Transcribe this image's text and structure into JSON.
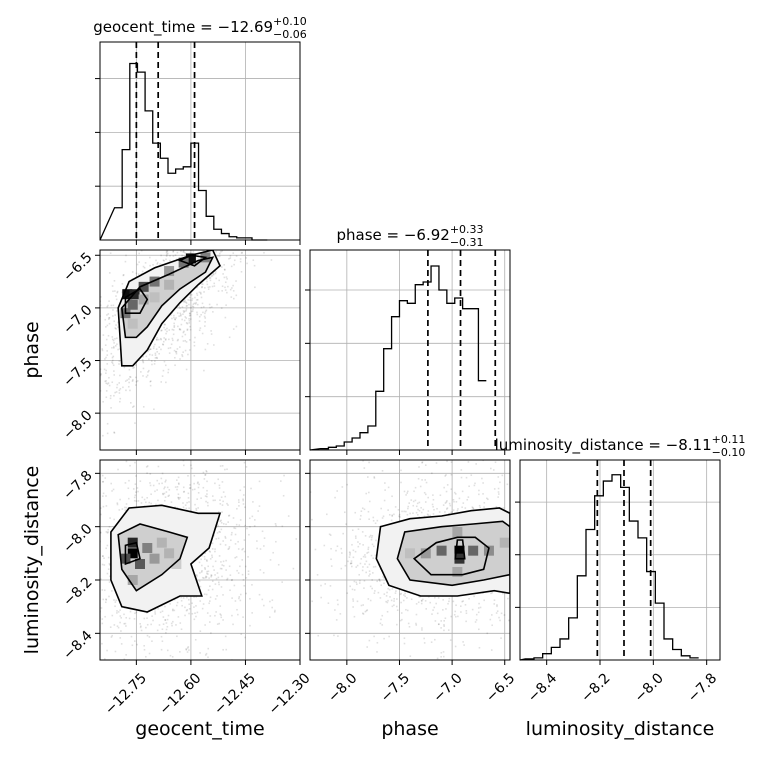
{
  "chart_data": {
    "type": "corner",
    "parameters": [
      {
        "name": "geocent_time",
        "label": "geocent_time",
        "range": [
          -12.85,
          -12.3
        ],
        "ticks": [
          -12.75,
          -12.6,
          -12.45,
          -12.3
        ],
        "tick_labels": [
          "−12.75",
          "−12.60",
          "−12.45",
          "−12.30"
        ],
        "title_main": "geocent_time = −12.69",
        "title_plus": "+0.10",
        "title_minus": "−0.06",
        "quantiles": [
          -12.75,
          -12.69,
          -12.59
        ]
      },
      {
        "name": "phase",
        "label": "phase",
        "range": [
          -8.35,
          -6.45
        ],
        "ticks": [
          -8.0,
          -7.5,
          -7.0,
          -6.5
        ],
        "tick_labels": [
          "−8.0",
          "−7.5",
          "−7.0",
          "−6.5"
        ],
        "title_main": "phase = −6.92",
        "title_plus": "+0.33",
        "title_minus": "−0.31",
        "quantiles": [
          -7.23,
          -6.92,
          -6.59
        ]
      },
      {
        "name": "luminosity_distance",
        "label": "luminosity_distance",
        "range": [
          -8.5,
          -7.75
        ],
        "ticks": [
          -8.4,
          -8.2,
          -8.0,
          -7.8
        ],
        "tick_labels": [
          "−8.4",
          "−8.2",
          "−8.0",
          "−7.8"
        ],
        "title_main": "luminosity_distance = −8.11",
        "title_plus": "+0.11",
        "title_minus": "−0.10",
        "quantiles": [
          -8.21,
          -8.11,
          -8.01
        ]
      }
    ],
    "histograms": {
      "geocent_time": {
        "bin_start": -12.81,
        "bin_width": 0.021,
        "counts": [
          0.15,
          0.42,
          0.82,
          0.78,
          0.6,
          0.45,
          0.38,
          0.31,
          0.33,
          0.34,
          0.45,
          0.23,
          0.11,
          0.05,
          0.03,
          0.015,
          0.01,
          0.01,
          0.0,
          0.0
        ],
        "ymax": 0.92,
        "yticks": [
          0.25,
          0.5,
          0.75
        ]
      },
      "phase": {
        "bin_start": -8.25,
        "bin_width": 0.075,
        "counts": [
          0.005,
          0.01,
          0.015,
          0.03,
          0.045,
          0.065,
          0.09,
          0.22,
          0.38,
          0.5,
          0.56,
          0.55,
          0.62,
          0.63,
          0.69,
          0.6,
          0.55,
          0.57,
          0.53,
          0.53,
          0.26
        ],
        "ymax": 0.75,
        "yticks": [
          0.2,
          0.4,
          0.6
        ]
      },
      "luminosity_distance": {
        "bin_start": -8.48,
        "bin_width": 0.0325,
        "counts": [
          0.005,
          0.01,
          0.03,
          0.06,
          0.1,
          0.2,
          0.4,
          0.62,
          0.78,
          0.85,
          0.88,
          0.82,
          0.66,
          0.58,
          0.42,
          0.27,
          0.1,
          0.05,
          0.02,
          0.01
        ],
        "ymax": 0.95,
        "yticks": [
          0.25,
          0.5,
          0.75
        ]
      }
    },
    "pairs": [
      {
        "x": "geocent_time",
        "y": "phase",
        "contours": [
          [
            [
              -12.79,
              -7.55
            ],
            [
              -12.8,
              -7.0
            ],
            [
              -12.77,
              -6.75
            ],
            [
              -12.7,
              -6.62
            ],
            [
              -12.6,
              -6.5
            ],
            [
              -12.54,
              -6.45
            ],
            [
              -12.52,
              -6.6
            ],
            [
              -12.58,
              -6.78
            ],
            [
              -12.63,
              -6.95
            ],
            [
              -12.68,
              -7.15
            ],
            [
              -12.72,
              -7.4
            ],
            [
              -12.76,
              -7.55
            ]
          ],
          [
            [
              -12.78,
              -7.28
            ],
            [
              -12.79,
              -7.0
            ],
            [
              -12.74,
              -6.8
            ],
            [
              -12.66,
              -6.68
            ],
            [
              -12.58,
              -6.55
            ],
            [
              -12.54,
              -6.52
            ],
            [
              -12.56,
              -6.66
            ],
            [
              -12.63,
              -6.82
            ],
            [
              -12.68,
              -6.98
            ],
            [
              -12.72,
              -7.18
            ],
            [
              -12.75,
              -7.28
            ]
          ],
          [
            [
              -12.78,
              -7.05
            ],
            [
              -12.78,
              -6.9
            ],
            [
              -12.74,
              -6.82
            ],
            [
              -12.72,
              -6.92
            ],
            [
              -12.74,
              -7.05
            ]
          ],
          [
            [
              -12.63,
              -6.55
            ],
            [
              -12.6,
              -6.5
            ],
            [
              -12.56,
              -6.52
            ],
            [
              -12.59,
              -6.6
            ]
          ]
        ],
        "cells": [
          [
            -12.775,
            -6.87,
            0.95
          ],
          [
            -12.755,
            -6.87,
            0.85
          ],
          [
            -12.78,
            -7.05,
            0.55
          ],
          [
            -12.76,
            -6.97,
            0.6
          ],
          [
            -12.73,
            -6.8,
            0.7
          ],
          [
            -12.7,
            -6.75,
            0.55
          ],
          [
            -12.6,
            -6.53,
            0.95
          ],
          [
            -12.62,
            -6.57,
            0.55
          ],
          [
            -12.66,
            -6.65,
            0.4
          ],
          [
            -12.73,
            -6.92,
            0.35
          ],
          [
            -12.7,
            -6.9,
            0.25
          ],
          [
            -12.76,
            -7.15,
            0.25
          ],
          [
            -12.66,
            -6.78,
            0.3
          ],
          [
            -12.56,
            -6.52,
            0.5
          ]
        ]
      },
      {
        "x": "geocent_time",
        "y": "luminosity_distance",
        "contours": [
          [
            [
              -12.82,
              -8.2
            ],
            [
              -12.82,
              -8.02
            ],
            [
              -12.77,
              -7.93
            ],
            [
              -12.68,
              -7.92
            ],
            [
              -12.58,
              -7.95
            ],
            [
              -12.52,
              -7.95
            ],
            [
              -12.55,
              -8.08
            ],
            [
              -12.6,
              -8.14
            ],
            [
              -12.57,
              -8.26
            ],
            [
              -12.63,
              -8.26
            ],
            [
              -12.72,
              -8.32
            ],
            [
              -12.79,
              -8.3
            ]
          ],
          [
            [
              -12.79,
              -8.16
            ],
            [
              -12.8,
              -8.03
            ],
            [
              -12.74,
              -7.99
            ],
            [
              -12.66,
              -8.02
            ],
            [
              -12.61,
              -8.04
            ],
            [
              -12.63,
              -8.12
            ],
            [
              -12.68,
              -8.18
            ],
            [
              -12.75,
              -8.24
            ]
          ],
          [
            [
              -12.78,
              -8.14
            ],
            [
              -12.78,
              -8.07
            ],
            [
              -12.75,
              -8.06
            ],
            [
              -12.74,
              -8.12
            ]
          ]
        ],
        "cells": [
          [
            -12.76,
            -8.1,
            1.0
          ],
          [
            -12.76,
            -8.06,
            0.85
          ],
          [
            -12.78,
            -8.12,
            0.7
          ],
          [
            -12.74,
            -8.14,
            0.65
          ],
          [
            -12.72,
            -8.08,
            0.5
          ],
          [
            -12.7,
            -8.12,
            0.4
          ],
          [
            -12.68,
            -8.06,
            0.3
          ],
          [
            -12.66,
            -8.1,
            0.3
          ],
          [
            -12.76,
            -8.2,
            0.35
          ],
          [
            -12.64,
            -8.14,
            0.2
          ]
        ]
      },
      {
        "x": "phase",
        "y": "luminosity_distance",
        "contours": [
          [
            [
              -7.72,
              -8.12
            ],
            [
              -7.68,
              -8.0
            ],
            [
              -7.4,
              -7.97
            ],
            [
              -7.1,
              -7.96
            ],
            [
              -6.82,
              -7.94
            ],
            [
              -6.55,
              -7.93
            ],
            [
              -6.45,
              -7.95
            ],
            [
              -6.45,
              -8.25
            ],
            [
              -6.6,
              -8.24
            ],
            [
              -6.95,
              -8.26
            ],
            [
              -7.3,
              -8.26
            ],
            [
              -7.6,
              -8.22
            ]
          ],
          [
            [
              -7.52,
              -8.12
            ],
            [
              -7.45,
              -8.02
            ],
            [
              -7.1,
              -8.0
            ],
            [
              -6.8,
              -7.99
            ],
            [
              -6.52,
              -7.98
            ],
            [
              -6.45,
              -8.0
            ],
            [
              -6.45,
              -8.18
            ],
            [
              -6.7,
              -8.2
            ],
            [
              -7.0,
              -8.22
            ],
            [
              -7.4,
              -8.2
            ]
          ],
          [
            [
              -7.36,
              -8.12
            ],
            [
              -7.15,
              -8.06
            ],
            [
              -6.95,
              -8.04
            ],
            [
              -6.78,
              -8.04
            ],
            [
              -6.65,
              -8.08
            ],
            [
              -6.7,
              -8.16
            ],
            [
              -6.9,
              -8.18
            ],
            [
              -7.2,
              -8.18
            ]
          ],
          [
            [
              -6.97,
              -8.12
            ],
            [
              -6.95,
              -8.05
            ],
            [
              -6.9,
              -8.05
            ],
            [
              -6.88,
              -8.12
            ]
          ]
        ],
        "cells": [
          [
            -6.93,
            -8.09,
            1.0
          ],
          [
            -6.93,
            -8.12,
            0.8
          ],
          [
            -7.1,
            -8.09,
            0.6
          ],
          [
            -6.8,
            -8.09,
            0.6
          ],
          [
            -7.25,
            -8.1,
            0.4
          ],
          [
            -6.65,
            -8.09,
            0.45
          ],
          [
            -6.95,
            -8.02,
            0.35
          ],
          [
            -6.95,
            -8.17,
            0.35
          ],
          [
            -7.4,
            -8.1,
            0.25
          ],
          [
            -6.5,
            -8.06,
            0.3
          ]
        ]
      }
    ]
  }
}
